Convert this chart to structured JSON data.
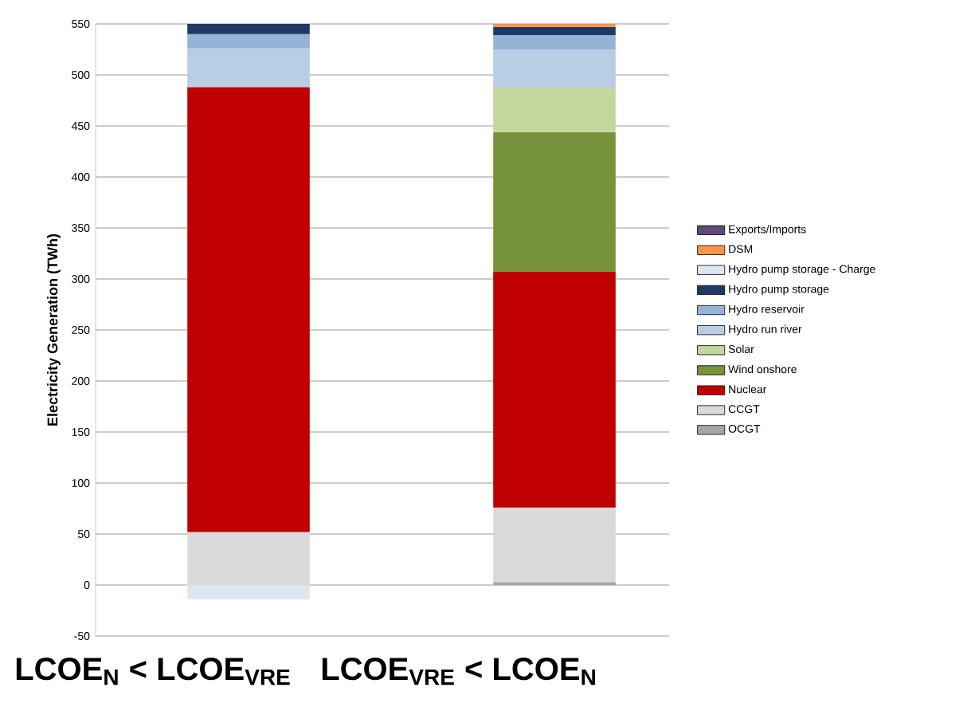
{
  "chart_data": {
    "type": "bar",
    "stacked": true,
    "ylabel": "Electricity Generation (TWh)",
    "categories": [
      "**LCOE$_{N}$ < LCOE$_{VRE}$**",
      "**LCOE$_{VRE}$ < LCOE$_{N}$**"
    ],
    "series": [
      {
        "name": "OCGT",
        "color": "#a6a6a6",
        "values": [
          0,
          3
        ]
      },
      {
        "name": "CCGT",
        "color": "#d9d9d9",
        "values": [
          52,
          73
        ]
      },
      {
        "name": "Nuclear",
        "color": "#c00000",
        "values": [
          436,
          231
        ]
      },
      {
        "name": "Wind onshore",
        "color": "#77933c",
        "values": [
          0,
          137
        ]
      },
      {
        "name": "Solar",
        "color": "#c3d69b",
        "values": [
          0,
          43
        ]
      },
      {
        "name": "Hydro run river",
        "color": "#b9cde5",
        "values": [
          38,
          38
        ]
      },
      {
        "name": "Hydro reservoir",
        "color": "#95b3d7",
        "values": [
          14,
          14
        ]
      },
      {
        "name": "Hydro pump storage",
        "color": "#1f3864",
        "values": [
          10,
          8
        ]
      },
      {
        "name": "Hydro pump storage - Charge",
        "color": "#dce6f2",
        "values": [
          -14,
          0
        ]
      },
      {
        "name": "DSM",
        "color": "#f79646",
        "values": [
          0,
          3
        ]
      },
      {
        "name": "Exports/Imports",
        "color": "#604a7b",
        "values": [
          0,
          0
        ]
      }
    ],
    "ylim": [
      -50,
      550
    ],
    "yticks": [
      -50,
      0,
      50,
      100,
      150,
      200,
      250,
      300,
      350,
      400,
      450,
      500,
      550
    ],
    "grid": "y",
    "legend": "right"
  }
}
